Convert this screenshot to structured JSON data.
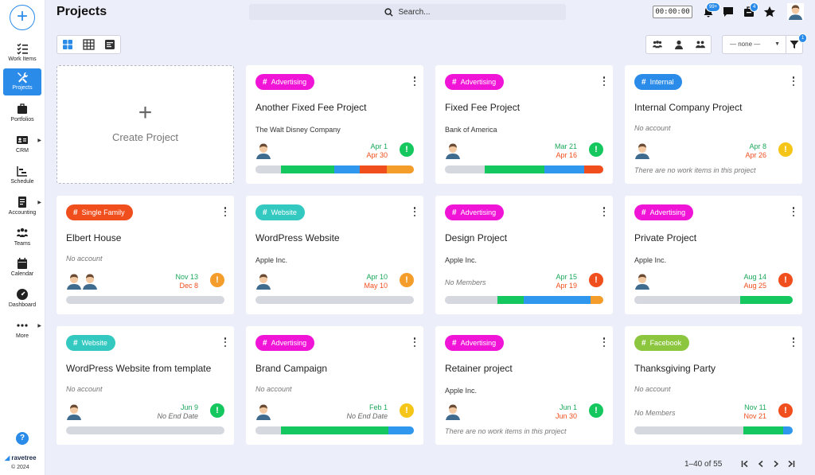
{
  "app": {
    "brand": "ravetree",
    "copyright": "© 2024"
  },
  "header": {
    "title": "Projects",
    "search_placeholder": "Search...",
    "timer": "00:00:00",
    "notifications_badge": "99+",
    "tasks_badge": "4"
  },
  "sidebar": {
    "items": [
      {
        "label": "Work Items",
        "icon": "checklist-icon"
      },
      {
        "label": "Projects",
        "icon": "tools-icon"
      },
      {
        "label": "Portfolios",
        "icon": "briefcase-icon"
      },
      {
        "label": "CRM",
        "icon": "contact-card-icon"
      },
      {
        "label": "Schedule",
        "icon": "gantt-icon"
      },
      {
        "label": "Accounting",
        "icon": "ledger-icon"
      },
      {
        "label": "Teams",
        "icon": "team-icon"
      },
      {
        "label": "Calendar",
        "icon": "calendar-icon"
      },
      {
        "label": "Dashboard",
        "icon": "gauge-icon"
      },
      {
        "label": "More",
        "icon": "more-icon"
      }
    ],
    "help": "?"
  },
  "toolbar": {
    "select_value": "— none —",
    "filter_badge": "1"
  },
  "create_card": {
    "label": "Create Project"
  },
  "colors": {
    "Advertising": "#f014d7",
    "Internal": "#2a8be8",
    "Single Family": "#f04e1d",
    "Website": "#33c9c0",
    "Facebook": "#8cc63f",
    "green": "#14c85f",
    "blue": "#2f98ee",
    "orange": "#f59d2b",
    "red": "#f04e1d",
    "gray": "#d6d8e0"
  },
  "projects": [
    {
      "tag": "Advertising",
      "title": "Another Fixed Fee Project",
      "account": "The Walt Disney Company",
      "members": 1,
      "start": "Apr 1",
      "end": "Apr 30",
      "status": "green",
      "progress": [
        [
          "gray",
          0.16
        ],
        [
          "green",
          0.34
        ],
        [
          "blue",
          0.16
        ],
        [
          "red",
          0.17
        ],
        [
          "orange",
          0.17
        ]
      ]
    },
    {
      "tag": "Advertising",
      "title": "Fixed Fee Project",
      "account": "Bank of America",
      "members": 1,
      "start": "Mar 21",
      "end": "Apr 16",
      "status": "green",
      "progress": [
        [
          "gray",
          0.25
        ],
        [
          "green",
          0.38
        ],
        [
          "blue",
          0.25
        ],
        [
          "red",
          0.12
        ]
      ]
    },
    {
      "tag": "Internal",
      "title": "Internal Company Project",
      "account": "No account",
      "members": 1,
      "start": "Apr 8",
      "end": "Apr 26",
      "status": "yellow",
      "nowork": "There are no work items in this project"
    },
    {
      "tag": "Single Family",
      "title": "Elbert House",
      "account": "No account",
      "members": 2,
      "start": "Nov 13",
      "end": "Dec 8",
      "status": "orange",
      "progress": [
        [
          "gray",
          1.0
        ]
      ]
    },
    {
      "tag": "Website",
      "title": "WordPress Website",
      "account": "Apple Inc.",
      "members": 1,
      "start": "Apr 10",
      "end": "May 10",
      "status": "orange",
      "progress": [
        [
          "gray",
          1.0
        ]
      ]
    },
    {
      "tag": "Advertising",
      "title": "Design Project",
      "account": "Apple Inc.",
      "members": 0,
      "nomembers": "No Members",
      "start": "Apr 15",
      "end": "Apr 19",
      "status": "red",
      "progress": [
        [
          "gray",
          0.33
        ],
        [
          "green",
          0.17
        ],
        [
          "blue",
          0.42
        ],
        [
          "orange",
          0.08
        ]
      ]
    },
    {
      "tag": "Advertising",
      "title": "Private Project",
      "account": "Apple Inc.",
      "members": 1,
      "start": "Aug 14",
      "end": "Aug 25",
      "status": "red",
      "progress": [
        [
          "gray",
          0.67
        ],
        [
          "green",
          0.33
        ]
      ]
    },
    {
      "tag": "Website",
      "title": "WordPress Website from template",
      "account": "No account",
      "members": 1,
      "start": "Jun 9",
      "end": "No End Date",
      "status": "green",
      "progress": [
        [
          "gray",
          1.0
        ]
      ]
    },
    {
      "tag": "Advertising",
      "title": "Brand Campaign",
      "account": "No account",
      "members": 1,
      "start": "Feb 1",
      "end": "No End Date",
      "status": "yellow",
      "progress": [
        [
          "gray",
          0.16
        ],
        [
          "green",
          0.68
        ],
        [
          "blue",
          0.16
        ]
      ]
    },
    {
      "tag": "Advertising",
      "title": "Retainer project",
      "account": "Apple Inc.",
      "members": 1,
      "start": "Jun 1",
      "end": "Jun 30",
      "status": "green",
      "nowork": "There are no work items in this project"
    },
    {
      "tag": "Facebook",
      "title": "Thanksgiving Party",
      "account": "No account",
      "members": 0,
      "nomembers": "No Members",
      "start": "Nov 11",
      "end": "Nov 21",
      "status": "red",
      "progress": [
        [
          "gray",
          0.69
        ],
        [
          "green",
          0.25
        ],
        [
          "blue",
          0.06
        ]
      ]
    }
  ],
  "pagination": {
    "range": "1–40 of 55"
  }
}
